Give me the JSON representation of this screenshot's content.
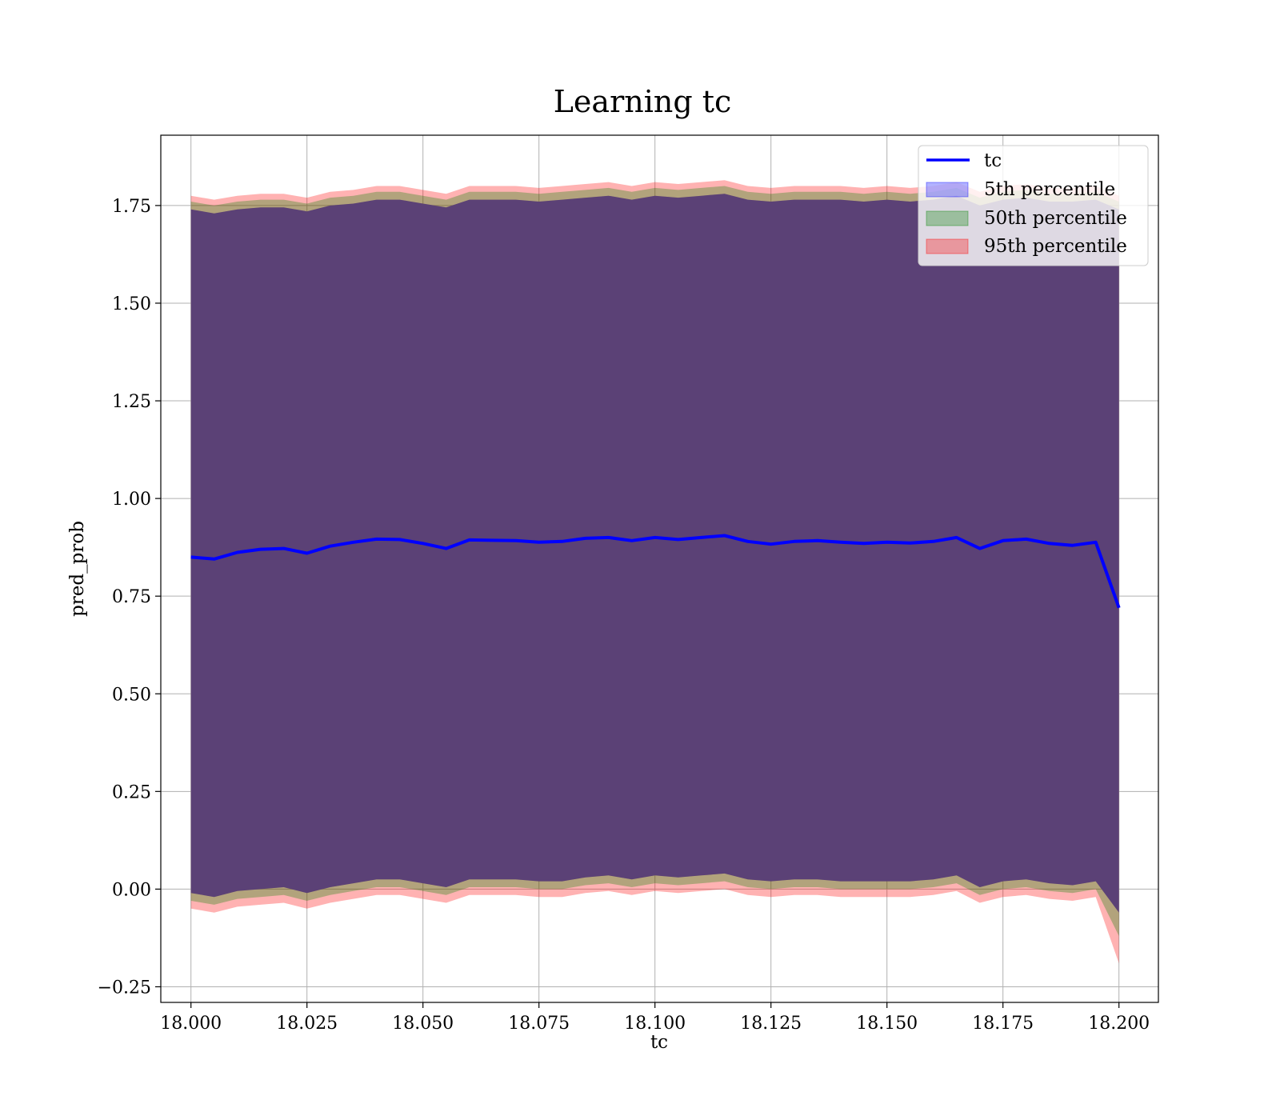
{
  "chart_data": {
    "type": "area",
    "title": "Learning tc",
    "xlabel": "tc",
    "ylabel": "pred_prob",
    "xlim": [
      17.9935,
      18.2085
    ],
    "ylim": [
      -0.29,
      1.93
    ],
    "x_ticks": [
      18.0,
      18.025,
      18.05,
      18.075,
      18.1,
      18.125,
      18.15,
      18.175,
      18.2
    ],
    "x_tick_labels": [
      "18.000",
      "18.025",
      "18.050",
      "18.075",
      "18.100",
      "18.125",
      "18.150",
      "18.175",
      "18.200"
    ],
    "y_ticks": [
      -0.25,
      0.0,
      0.25,
      0.5,
      0.75,
      1.0,
      1.25,
      1.5,
      1.75
    ],
    "y_tick_labels": [
      "−0.25",
      "0.00",
      "0.25",
      "0.50",
      "0.75",
      "1.00",
      "1.25",
      "1.50",
      "1.75"
    ],
    "grid": true,
    "legend_position": "top-right",
    "colors": {
      "tc": "#0000ff",
      "p5": "#0000ff",
      "p50": "#008000",
      "p95": "#ff0000",
      "band_body": "#a0707a"
    },
    "x": [
      18.0,
      18.005,
      18.01,
      18.015,
      18.02,
      18.025,
      18.03,
      18.035,
      18.04,
      18.045,
      18.05,
      18.055,
      18.06,
      18.065,
      18.07,
      18.075,
      18.08,
      18.085,
      18.09,
      18.095,
      18.1,
      18.105,
      18.11,
      18.115,
      18.12,
      18.125,
      18.13,
      18.135,
      18.14,
      18.145,
      18.15,
      18.155,
      18.16,
      18.165,
      18.17,
      18.175,
      18.18,
      18.185,
      18.19,
      18.195,
      18.2
    ],
    "series": [
      {
        "name": "tc",
        "values": [
          0.85,
          0.845,
          0.862,
          0.87,
          0.872,
          0.86,
          0.878,
          0.888,
          0.896,
          0.895,
          0.885,
          0.872,
          0.894,
          0.893,
          0.892,
          0.888,
          0.89,
          0.898,
          0.9,
          0.892,
          0.9,
          0.895,
          0.9,
          0.905,
          0.89,
          0.883,
          0.89,
          0.892,
          0.888,
          0.885,
          0.888,
          0.886,
          0.89,
          0.9,
          0.872,
          0.892,
          0.896,
          0.885,
          0.88,
          0.888,
          0.72
        ]
      },
      {
        "name": "5th percentile",
        "upper": [
          1.74,
          1.73,
          1.74,
          1.745,
          1.745,
          1.735,
          1.75,
          1.755,
          1.765,
          1.765,
          1.755,
          1.745,
          1.765,
          1.765,
          1.765,
          1.76,
          1.765,
          1.77,
          1.775,
          1.765,
          1.775,
          1.77,
          1.775,
          1.78,
          1.765,
          1.76,
          1.765,
          1.765,
          1.765,
          1.76,
          1.765,
          1.76,
          1.765,
          1.775,
          1.75,
          1.765,
          1.77,
          1.76,
          1.76,
          1.765,
          1.74
        ],
        "lower": [
          -0.01,
          -0.02,
          -0.005,
          0.0,
          0.005,
          -0.01,
          0.005,
          0.015,
          0.025,
          0.025,
          0.015,
          0.005,
          0.025,
          0.025,
          0.025,
          0.02,
          0.02,
          0.03,
          0.035,
          0.025,
          0.035,
          0.03,
          0.035,
          0.04,
          0.025,
          0.02,
          0.025,
          0.025,
          0.02,
          0.02,
          0.02,
          0.02,
          0.025,
          0.035,
          0.005,
          0.02,
          0.025,
          0.015,
          0.01,
          0.02,
          -0.06
        ]
      },
      {
        "name": "50th percentile",
        "upper": [
          1.76,
          1.75,
          1.76,
          1.765,
          1.765,
          1.755,
          1.77,
          1.775,
          1.785,
          1.785,
          1.775,
          1.765,
          1.785,
          1.785,
          1.785,
          1.78,
          1.785,
          1.79,
          1.795,
          1.785,
          1.795,
          1.79,
          1.795,
          1.8,
          1.785,
          1.78,
          1.785,
          1.785,
          1.785,
          1.78,
          1.785,
          1.78,
          1.785,
          1.795,
          1.77,
          1.785,
          1.79,
          1.78,
          1.78,
          1.785,
          1.76
        ],
        "lower": [
          -0.03,
          -0.04,
          -0.025,
          -0.02,
          -0.015,
          -0.03,
          -0.015,
          -0.005,
          0.005,
          0.005,
          -0.005,
          -0.015,
          0.005,
          0.005,
          0.005,
          0.0,
          0.0,
          0.01,
          0.015,
          0.005,
          0.015,
          0.01,
          0.015,
          0.02,
          0.005,
          0.0,
          0.005,
          0.005,
          0.0,
          0.0,
          0.0,
          0.0,
          0.005,
          0.015,
          -0.015,
          0.0,
          0.005,
          -0.005,
          -0.01,
          0.0,
          -0.12
        ]
      },
      {
        "name": "95th percentile",
        "upper": [
          1.775,
          1.765,
          1.775,
          1.78,
          1.78,
          1.77,
          1.785,
          1.79,
          1.8,
          1.8,
          1.79,
          1.78,
          1.8,
          1.8,
          1.8,
          1.795,
          1.8,
          1.805,
          1.81,
          1.8,
          1.81,
          1.805,
          1.81,
          1.815,
          1.8,
          1.795,
          1.8,
          1.8,
          1.8,
          1.795,
          1.8,
          1.795,
          1.8,
          1.81,
          1.785,
          1.8,
          1.805,
          1.795,
          1.795,
          1.8,
          1.775
        ],
        "lower": [
          -0.05,
          -0.06,
          -0.045,
          -0.04,
          -0.035,
          -0.05,
          -0.035,
          -0.025,
          -0.015,
          -0.015,
          -0.025,
          -0.035,
          -0.015,
          -0.015,
          -0.015,
          -0.02,
          -0.02,
          -0.01,
          -0.005,
          -0.015,
          -0.005,
          -0.01,
          -0.005,
          0.0,
          -0.015,
          -0.02,
          -0.015,
          -0.015,
          -0.02,
          -0.02,
          -0.02,
          -0.02,
          -0.015,
          -0.005,
          -0.035,
          -0.02,
          -0.015,
          -0.025,
          -0.03,
          -0.02,
          -0.19
        ]
      }
    ]
  }
}
